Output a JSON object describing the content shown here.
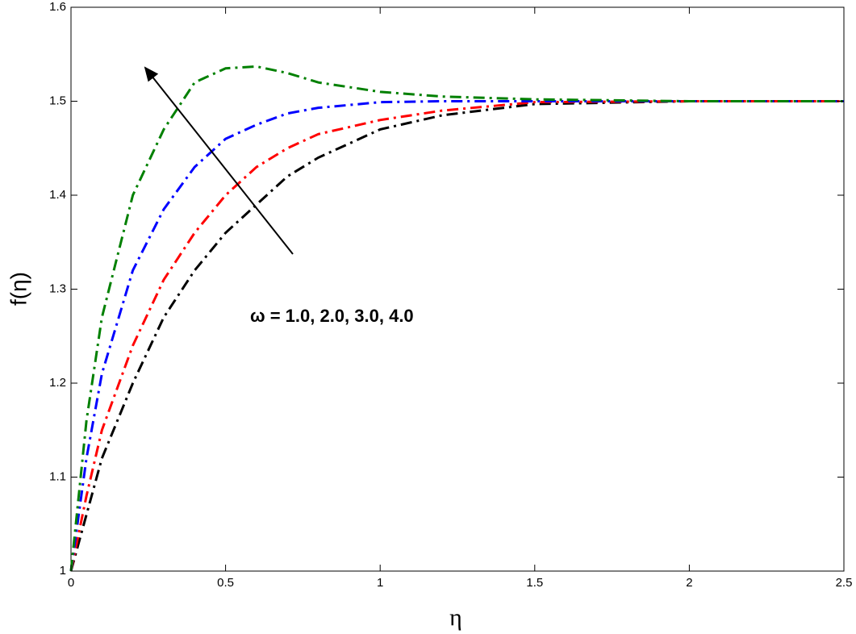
{
  "chart_data": {
    "type": "line",
    "x_label": "η",
    "y_label": "f(η)",
    "annotation": "ω = 1.0, 2.0, 3.0, 4.0",
    "x": [
      0,
      0.05,
      0.1,
      0.2,
      0.3,
      0.4,
      0.5,
      0.6,
      0.7,
      0.8,
      1.0,
      1.2,
      1.5,
      2.0,
      2.5
    ],
    "series": [
      {
        "color": "#000000",
        "values": [
          1.0,
          1.06,
          1.12,
          1.2,
          1.27,
          1.32,
          1.36,
          1.39,
          1.42,
          1.44,
          1.47,
          1.485,
          1.497,
          1.5,
          1.5
        ]
      },
      {
        "color": "#ff0000",
        "values": [
          1.0,
          1.08,
          1.15,
          1.24,
          1.31,
          1.36,
          1.4,
          1.43,
          1.45,
          1.465,
          1.48,
          1.49,
          1.499,
          1.5,
          1.5
        ]
      },
      {
        "color": "#0000ff",
        "values": [
          1.0,
          1.12,
          1.21,
          1.32,
          1.385,
          1.43,
          1.46,
          1.475,
          1.487,
          1.493,
          1.499,
          1.5,
          1.5,
          1.5,
          1.5
        ]
      },
      {
        "color": "#008000",
        "values": [
          1.0,
          1.16,
          1.27,
          1.4,
          1.47,
          1.52,
          1.535,
          1.537,
          1.53,
          1.52,
          1.51,
          1.505,
          1.502,
          1.5,
          1.5
        ]
      }
    ],
    "xlim": [
      0,
      2.5
    ],
    "xticks": [
      0,
      0.5,
      1,
      1.5,
      2,
      2.5
    ],
    "ylim": [
      1,
      1.6
    ],
    "yticks": [
      1,
      1.1,
      1.2,
      1.3,
      1.4,
      1.5,
      1.6
    ],
    "grid": false
  }
}
